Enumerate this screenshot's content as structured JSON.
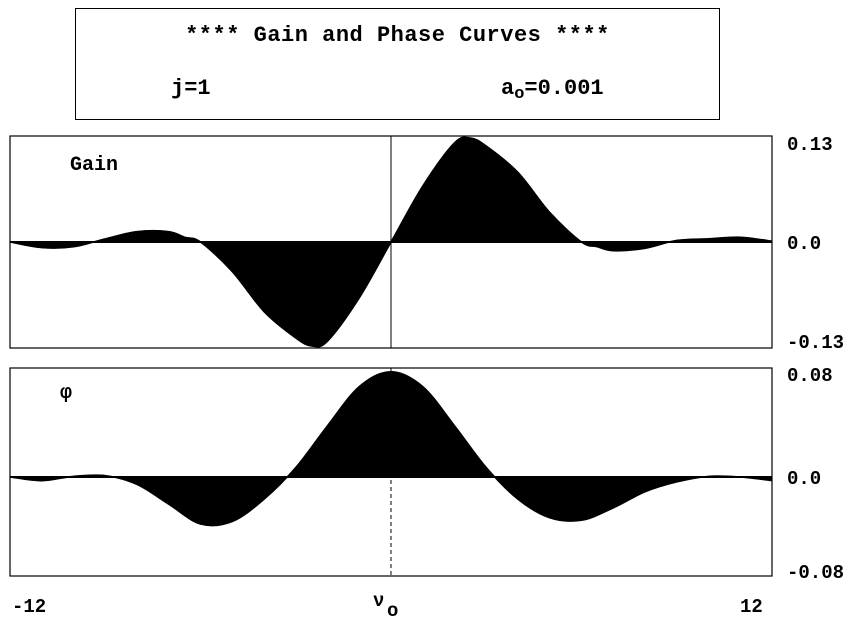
{
  "header": {
    "title": "**** Gain and Phase Curves ****",
    "j_label": "j=1",
    "a_prefix": "a",
    "a_sub": "o",
    "a_value": "=0.001"
  },
  "chart_data": [
    {
      "type": "area",
      "panel_label": "Gain",
      "xlim": [
        -12,
        12
      ],
      "ylim": [
        -0.13,
        0.13
      ],
      "ytick_labels": [
        "0.13",
        "0.0",
        "-0.13"
      ],
      "x": [
        -12,
        -11,
        -10,
        -9,
        -8,
        -7,
        -6.5,
        -6,
        -5,
        -4,
        -3,
        -2.5,
        -2,
        -1,
        0,
        1,
        2,
        2.5,
        3,
        4,
        5,
        6,
        6.5,
        7,
        8,
        9,
        10,
        11,
        12
      ],
      "y": [
        0,
        -0.007,
        -0.006,
        0.004,
        0.013,
        0.013,
        0.006,
        0,
        -0.037,
        -0.087,
        -0.12,
        -0.13,
        -0.124,
        -0.07,
        0,
        0.07,
        0.124,
        0.13,
        0.12,
        0.087,
        0.037,
        0,
        -0.006,
        -0.011,
        -0.008,
        0.002,
        0.004,
        0.006,
        0.001
      ]
    },
    {
      "type": "area",
      "panel_label": "φ",
      "xlim": [
        -12,
        12
      ],
      "ylim": [
        -0.08,
        0.08
      ],
      "ytick_labels": [
        "0.08",
        "0.0",
        "-0.08"
      ],
      "xtick_labels": [
        "-12",
        "ν",
        "12"
      ],
      "xtick_sub": "o",
      "x": [
        -12,
        -11,
        -10,
        -9,
        -8,
        -7,
        -6,
        -5,
        -4,
        -3,
        -2,
        -1,
        0,
        1,
        2,
        3,
        4,
        5,
        6,
        7,
        8,
        9,
        10,
        11,
        12
      ],
      "y": [
        0,
        -0.003,
        0.0005,
        0.001,
        -0.006,
        -0.022,
        -0.038,
        -0.036,
        -0.018,
        0.007,
        0.038,
        0.067,
        0.078,
        0.067,
        0.038,
        0.007,
        -0.018,
        -0.033,
        -0.035,
        -0.025,
        -0.012,
        -0.004,
        0.0005,
        0,
        -0.003
      ]
    }
  ]
}
